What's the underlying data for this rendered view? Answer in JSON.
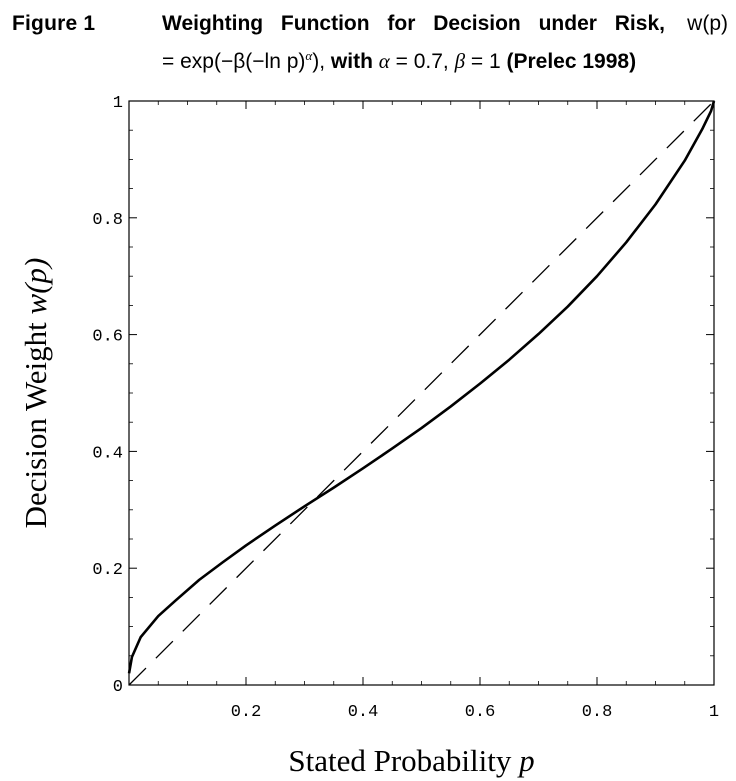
{
  "caption": {
    "figure_label": "Figure 1",
    "title_prefix": "Weighting Function for Decision under Risk,",
    "formula_w": "w(p)",
    "formula_expr": "= exp(−β(−ln p)",
    "formula_alpha_sup": "α",
    "formula_close": "),",
    "with_text": "with",
    "alpha_text": "α",
    "alpha_value": " = 0.7, ",
    "beta_text": "β",
    "beta_value": " = 1 ",
    "citation": "(Prelec 1998)"
  },
  "chart_data": {
    "type": "line",
    "xlabel": "Stated Probability p",
    "ylabel": "Decision Weight w(p)",
    "xlim": [
      0,
      1
    ],
    "ylim": [
      0,
      1
    ],
    "x_ticks": [
      0.2,
      0.4,
      0.6,
      0.8,
      1
    ],
    "x_tick_labels": [
      "0.2",
      "0.4",
      "0.6",
      "0.8",
      "1"
    ],
    "y_ticks": [
      0,
      0.2,
      0.4,
      0.6,
      0.8,
      1
    ],
    "y_tick_labels": [
      "0",
      "0.2",
      "0.4",
      "0.6",
      "0.8",
      "1"
    ],
    "grid": false,
    "series": [
      {
        "style": "solid",
        "x": [
          0.0001,
          0.005,
          0.02,
          0.05,
          0.08,
          0.12,
          0.16,
          0.2,
          0.25,
          0.3,
          0.35,
          0.4,
          0.45,
          0.5,
          0.55,
          0.6,
          0.65,
          0.7,
          0.75,
          0.8,
          0.85,
          0.9,
          0.95,
          0.98,
          0.995,
          1.0
        ],
        "y": [
          0.02,
          0.048,
          0.082,
          0.118,
          0.145,
          0.18,
          0.21,
          0.239,
          0.273,
          0.306,
          0.338,
          0.371,
          0.405,
          0.44,
          0.477,
          0.516,
          0.557,
          0.601,
          0.648,
          0.7,
          0.758,
          0.823,
          0.898,
          0.952,
          0.983,
          1.0
        ]
      },
      {
        "style": "dashed",
        "x": [
          0,
          1
        ],
        "y": [
          0,
          1
        ]
      }
    ]
  },
  "colors": {
    "line": "#000000",
    "frame": "#000000",
    "background": "#ffffff"
  }
}
